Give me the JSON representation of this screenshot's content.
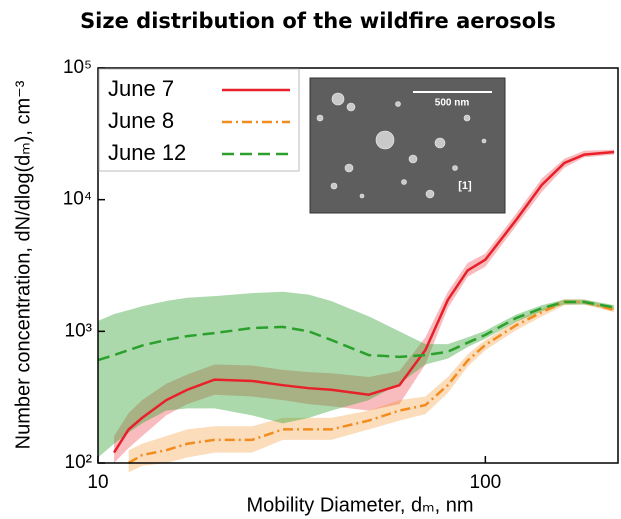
{
  "chart_data": {
    "type": "line",
    "title": "Size distribution of the wildfire aerosols",
    "x_label": "Mobility Diameter, dₘ, nm",
    "y_label": "Number concentration, dN/dlog(dₘ), cm⁻³",
    "x_scale": "log",
    "y_scale": "log",
    "xlim": [
      10,
      220
    ],
    "ylim": [
      100,
      100000
    ],
    "xticks": [
      10,
      100
    ],
    "yticks": [
      {
        "value": 100,
        "label": "10²"
      },
      {
        "value": 1000,
        "label": "10³"
      },
      {
        "value": 10000,
        "label": "10⁴"
      },
      {
        "value": 100000,
        "label": "10⁵"
      }
    ],
    "legend": "upper left",
    "annotations": [
      "500 nm",
      "[1]"
    ],
    "x": [
      10,
      11,
      12,
      13,
      15,
      17,
      20,
      25,
      30,
      35,
      40,
      50,
      60,
      70,
      80,
      90,
      100,
      120,
      140,
      160,
      180,
      215
    ],
    "series": [
      {
        "name": "June 7",
        "color": "#e8202a",
        "style": "solid",
        "values": [
          null,
          120,
          180,
          220,
          300,
          360,
          430,
          420,
          390,
          370,
          360,
          330,
          390,
          720,
          1730,
          2900,
          3500,
          7000,
          13000,
          19000,
          22000,
          23000
        ],
        "lower": [
          null,
          100,
          130,
          160,
          230,
          280,
          330,
          320,
          300,
          280,
          270,
          250,
          280,
          560,
          1500,
          2600,
          3100,
          6300,
          11500,
          17500,
          21000,
          22000
        ],
        "upper": [
          null,
          160,
          240,
          300,
          400,
          470,
          560,
          550,
          510,
          490,
          480,
          450,
          500,
          900,
          2000,
          3300,
          3900,
          7800,
          14500,
          20500,
          23500,
          24000
        ]
      },
      {
        "name": "June 8",
        "color": "#f28c1f",
        "style": "dashdot",
        "values": [
          null,
          null,
          100,
          115,
          125,
          140,
          150,
          150,
          180,
          180,
          180,
          210,
          250,
          275,
          390,
          600,
          790,
          1110,
          1400,
          1670,
          1670,
          1450
        ],
        "lower": [
          null,
          null,
          85,
          95,
          100,
          110,
          120,
          120,
          150,
          150,
          150,
          180,
          210,
          235,
          340,
          540,
          720,
          1020,
          1300,
          1580,
          1600,
          1400
        ],
        "upper": [
          null,
          null,
          125,
          140,
          160,
          180,
          190,
          190,
          220,
          220,
          220,
          250,
          300,
          320,
          450,
          670,
          860,
          1200,
          1500,
          1760,
          1750,
          1520
        ]
      },
      {
        "name": "June 12",
        "color": "#2ca02c",
        "style": "dashed",
        "values": [
          605,
          660,
          720,
          780,
          860,
          920,
          970,
          1060,
          1080,
          1000,
          860,
          660,
          640,
          660,
          700,
          820,
          940,
          1260,
          1500,
          1670,
          1670,
          1520
        ],
        "lower": [
          110,
          140,
          170,
          200,
          250,
          260,
          260,
          230,
          200,
          220,
          250,
          300,
          400,
          560,
          620,
          760,
          880,
          1180,
          1420,
          1600,
          1600,
          1460
        ],
        "upper": [
          1200,
          1350,
          1450,
          1550,
          1700,
          1800,
          1850,
          1950,
          2000,
          1900,
          1700,
          1300,
          1000,
          800,
          800,
          900,
          1010,
          1340,
          1580,
          1740,
          1740,
          1580
        ]
      }
    ]
  }
}
